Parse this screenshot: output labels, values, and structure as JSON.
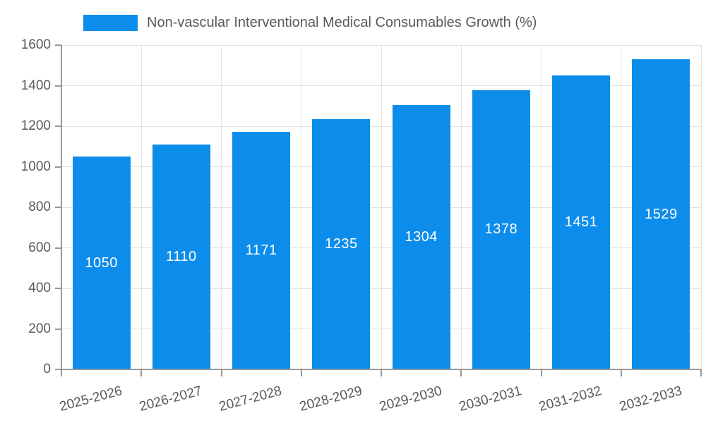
{
  "chart_data": {
    "type": "bar",
    "title": "",
    "legend": {
      "label": "Non-vascular Interventional Medical Consumables Growth (%)",
      "position": "top-left"
    },
    "categories": [
      "2025-2026",
      "2026-2027",
      "2027-2028",
      "2028-2029",
      "2029-2030",
      "2030-2031",
      "2031-2032",
      "2032-2033"
    ],
    "values": [
      1050,
      1110,
      1171,
      1235,
      1304,
      1378,
      1451,
      1529
    ],
    "xlabel": "",
    "ylabel": "",
    "ylim": [
      0,
      1600
    ],
    "ytick_step": 200,
    "ytick_labels": [
      "0",
      "200",
      "400",
      "600",
      "800",
      "1000",
      "1200",
      "1400",
      "1600"
    ],
    "grid": true,
    "bar_label_position": "inside-center",
    "x_label_rotation_deg": -15,
    "colors": {
      "bar": "#0d8deb",
      "bar_label": "#ffffff",
      "grid": "#e2e2e2",
      "axis": "#989898",
      "tick_text": "#595959",
      "legend_text": "#595959",
      "background": "#ffffff"
    }
  }
}
